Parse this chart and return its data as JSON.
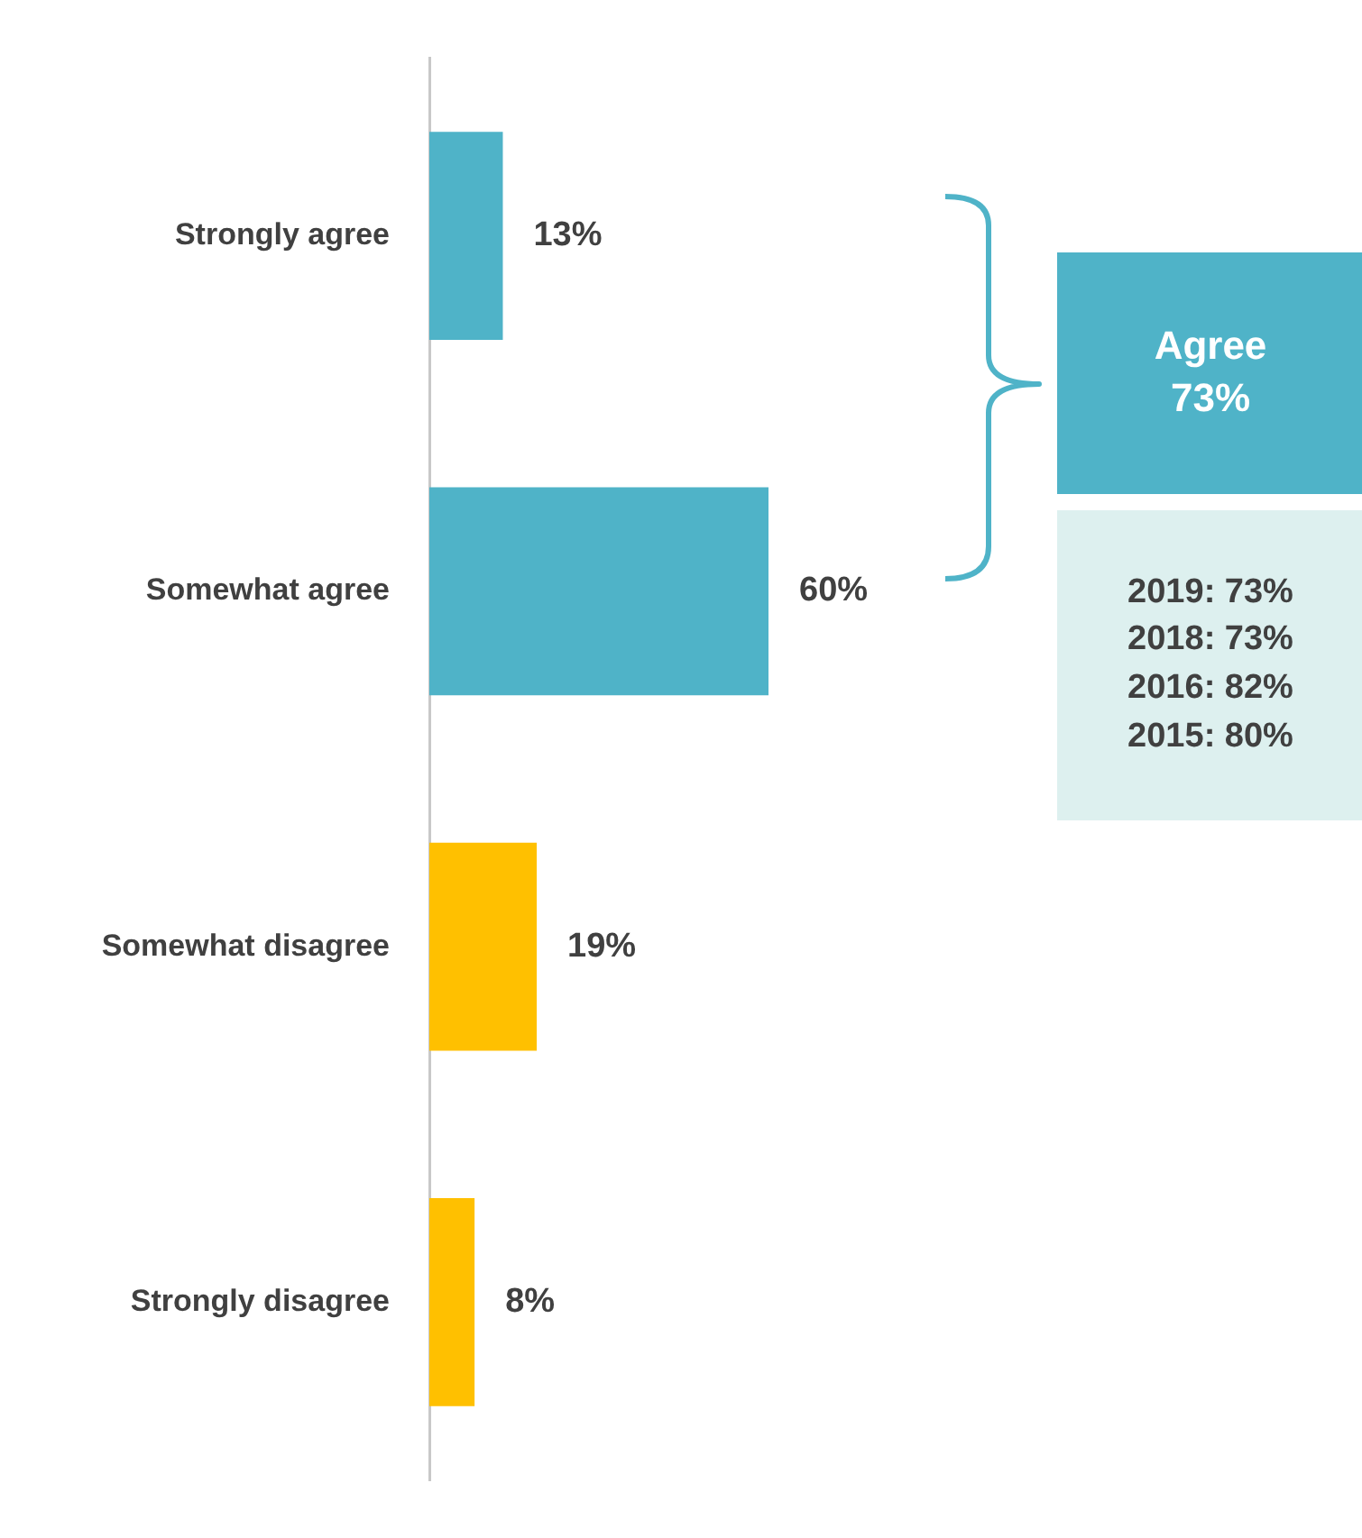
{
  "chart_data": {
    "type": "bar",
    "orientation": "horizontal",
    "categories": [
      "Strongly agree",
      "Somewhat agree",
      "Somewhat disagree",
      "Strongly disagree"
    ],
    "values": [
      13,
      60,
      19,
      8
    ],
    "colors": [
      "#4fb3c8",
      "#4fb3c8",
      "#ffc000",
      "#ffc000"
    ],
    "value_labels": [
      "13%",
      "60%",
      "19%",
      "8%"
    ],
    "annotations": [
      "Agree",
      "73%",
      "2019: 73%",
      "2018: 73%",
      "2016: 82%",
      "2015: 80%"
    ],
    "legend": false
  }
}
